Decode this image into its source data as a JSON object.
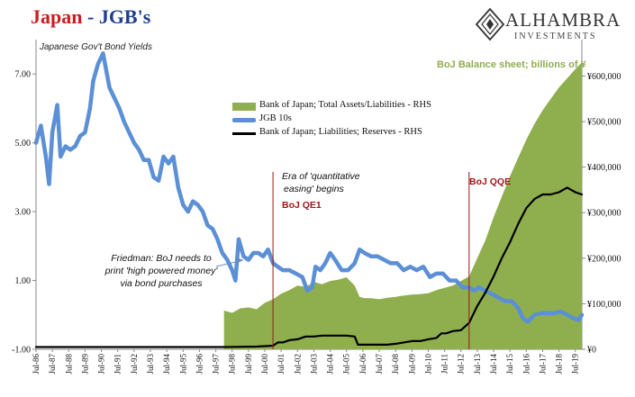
{
  "header": {
    "title_country": "Japan",
    "title_sep": " - ",
    "title_topic": "JGB's",
    "subtitle": "Japanese Gov't Bond Yields"
  },
  "logo": {
    "name": "ALHAMBRA",
    "tagline": "INVESTMENTS"
  },
  "rhs_label": "BoJ Balance sheet; billions of ¥",
  "annotations": {
    "qe_era_line1": "Era of 'quantitative",
    "qe_era_line2": "easing' begins",
    "qe1": "BoJ QE1",
    "qqe": "BoJ QQE",
    "friedman_line1": "Friedman: BoJ needs to",
    "friedman_line2": "print 'high powered money'",
    "friedman_line3": "via bond purchases"
  },
  "chart_data": {
    "type": "line",
    "title": "Japan - JGB's",
    "subtitle": "Japanese Gov't Bond Yields",
    "x_tick_labels": [
      "Jul-86",
      "Jul-87",
      "Jul-88",
      "Jul-89",
      "Jul-90",
      "Jul-91",
      "Jul-92",
      "Jul-93",
      "Jul-94",
      "Jul-95",
      "Jul-96",
      "Jul-97",
      "Jul-98",
      "Jul-99",
      "Jul-00",
      "Jul-01",
      "Jul-02",
      "Jul-03",
      "Jul-04",
      "Jul-05",
      "Jul-06",
      "Jul-07",
      "Jul-08",
      "Jul-09",
      "Jul-10",
      "Jul-11",
      "Jul-12",
      "Jul-13",
      "Jul-14",
      "Jul-15",
      "Jul-16",
      "Jul-17",
      "Jul-18",
      "Jul-19"
    ],
    "x_range": [
      1986.5,
      2019.9
    ],
    "left_axis": {
      "ylim": [
        -1.0,
        8.0
      ],
      "tick_labels": [
        "-1.00",
        "1.00",
        "3.00",
        "5.00",
        "7.00"
      ],
      "tick_values": [
        -1,
        1,
        3,
        5,
        7
      ]
    },
    "right_axis": {
      "label": "BoJ Balance sheet; billions of ¥",
      "ylim": [
        0,
        680000
      ],
      "tick_labels": [
        "¥0",
        "¥100,000",
        "¥200,000",
        "¥300,000",
        "¥400,000",
        "¥500,000",
        "¥600,000"
      ],
      "tick_values": [
        0,
        100000,
        200000,
        300000,
        400000,
        500000,
        600000
      ]
    },
    "series": [
      {
        "name": "Bank of Japan; Total Assets/Liabilities - RHS",
        "kind": "area",
        "axis": "right",
        "color": "#8fae4e",
        "x": [
          1998.0,
          1998.5,
          1999.0,
          1999.5,
          2000.0,
          2000.5,
          2001.0,
          2001.5,
          2002.0,
          2002.5,
          2003.0,
          2003.5,
          2004.0,
          2004.5,
          2005.0,
          2005.5,
          2006.0,
          2006.3,
          2006.6,
          2007.0,
          2007.5,
          2008.0,
          2008.5,
          2009.0,
          2009.5,
          2010.0,
          2010.5,
          2011.0,
          2011.5,
          2012.0,
          2012.5,
          2013.0,
          2013.5,
          2014.0,
          2014.5,
          2015.0,
          2015.5,
          2016.0,
          2016.5,
          2017.0,
          2017.5,
          2018.0,
          2018.5,
          2019.0,
          2019.5,
          2019.9
        ],
        "values": [
          85000,
          80000,
          90000,
          92000,
          88000,
          102000,
          110000,
          122000,
          130000,
          140000,
          137000,
          148000,
          143000,
          150000,
          153000,
          158000,
          140000,
          115000,
          112000,
          112000,
          110000,
          113000,
          115000,
          118000,
          120000,
          121000,
          123000,
          130000,
          135000,
          140000,
          150000,
          160000,
          200000,
          240000,
          290000,
          335000,
          380000,
          420000,
          460000,
          495000,
          525000,
          550000,
          575000,
          595000,
          615000,
          630000
        ]
      },
      {
        "name": "JGB 10s",
        "kind": "line",
        "axis": "left",
        "color": "#5b8fd6",
        "x": [
          1986.5,
          1986.8,
          1987.1,
          1987.3,
          1987.5,
          1987.8,
          1988.0,
          1988.3,
          1988.6,
          1988.9,
          1989.2,
          1989.5,
          1989.8,
          1990.0,
          1990.3,
          1990.6,
          1990.8,
          1991.0,
          1991.3,
          1991.6,
          1991.9,
          1992.2,
          1992.5,
          1992.8,
          1993.1,
          1993.4,
          1993.7,
          1994.0,
          1994.3,
          1994.6,
          1994.9,
          1995.2,
          1995.5,
          1995.8,
          1996.1,
          1996.4,
          1996.7,
          1997.0,
          1997.3,
          1997.6,
          1997.9,
          1998.2,
          1998.5,
          1998.7,
          1998.9,
          1999.2,
          1999.5,
          1999.8,
          2000.1,
          2000.4,
          2000.7,
          2001.0,
          2001.3,
          2001.6,
          2002.0,
          2002.4,
          2002.8,
          2003.1,
          2003.4,
          2003.6,
          2003.9,
          2004.2,
          2004.5,
          2004.8,
          2005.2,
          2005.6,
          2006.0,
          2006.3,
          2006.6,
          2007.0,
          2007.4,
          2007.8,
          2008.2,
          2008.6,
          2009.0,
          2009.4,
          2009.8,
          2010.2,
          2010.6,
          2011.0,
          2011.4,
          2011.8,
          2012.2,
          2012.6,
          2013.0,
          2013.3,
          2013.6,
          2014.0,
          2014.4,
          2014.8,
          2015.2,
          2015.6,
          2016.0,
          2016.3,
          2016.6,
          2017.0,
          2017.4,
          2017.8,
          2018.2,
          2018.6,
          2019.0,
          2019.4,
          2019.7,
          2019.9
        ],
        "values": [
          5.0,
          5.5,
          4.6,
          3.8,
          5.3,
          6.1,
          4.6,
          4.9,
          4.8,
          4.9,
          5.2,
          5.3,
          6.0,
          6.8,
          7.3,
          7.6,
          7.1,
          6.6,
          6.3,
          6.0,
          5.6,
          5.3,
          5.0,
          4.8,
          4.5,
          4.5,
          4.0,
          3.9,
          4.6,
          4.4,
          4.6,
          3.7,
          3.2,
          3.0,
          3.3,
          3.2,
          3.0,
          2.6,
          2.5,
          2.2,
          1.8,
          1.6,
          1.3,
          1.0,
          2.2,
          1.7,
          1.6,
          1.8,
          1.8,
          1.7,
          1.9,
          1.5,
          1.4,
          1.3,
          1.3,
          1.2,
          1.1,
          0.7,
          0.8,
          1.4,
          1.3,
          1.5,
          1.8,
          1.6,
          1.3,
          1.3,
          1.5,
          1.9,
          1.8,
          1.7,
          1.7,
          1.6,
          1.5,
          1.5,
          1.3,
          1.4,
          1.3,
          1.4,
          1.1,
          1.2,
          1.2,
          1.0,
          1.0,
          0.8,
          0.8,
          0.7,
          0.8,
          0.7,
          0.6,
          0.5,
          0.4,
          0.4,
          0.2,
          -0.1,
          -0.2,
          0.0,
          0.05,
          0.05,
          0.05,
          0.1,
          0.0,
          -0.1,
          -0.15,
          0.0
        ]
      },
      {
        "name": "Bank of Japan; Liabilities; Reserves - RHS",
        "kind": "line",
        "axis": "right",
        "color": "#000000",
        "x": [
          1986.5,
          1998.0,
          2000.0,
          2001.0,
          2001.3,
          2001.6,
          2002.0,
          2002.5,
          2003.0,
          2003.5,
          2004.0,
          2004.5,
          2005.0,
          2005.5,
          2006.0,
          2006.2,
          2006.5,
          2007.0,
          2008.0,
          2008.5,
          2009.0,
          2009.5,
          2010.0,
          2010.5,
          2011.0,
          2011.3,
          2011.6,
          2012.0,
          2012.5,
          2013.0,
          2013.5,
          2014.0,
          2014.5,
          2015.0,
          2015.5,
          2016.0,
          2016.5,
          2017.0,
          2017.5,
          2018.0,
          2018.5,
          2019.0,
          2019.5,
          2019.9
        ],
        "values": [
          5000,
          5000,
          6000,
          8000,
          15000,
          15000,
          20000,
          22000,
          28000,
          28000,
          30000,
          30000,
          30000,
          30000,
          28000,
          10000,
          10000,
          10000,
          10000,
          12000,
          15000,
          18000,
          18000,
          22000,
          25000,
          35000,
          35000,
          40000,
          42000,
          58000,
          95000,
          125000,
          160000,
          200000,
          235000,
          275000,
          310000,
          330000,
          340000,
          340000,
          345000,
          355000,
          345000,
          340000
        ]
      }
    ],
    "events": [
      {
        "label": "BoJ QE1",
        "x": 2001.0
      },
      {
        "label": "BoJ QQE",
        "x": 2013.0
      }
    ]
  }
}
